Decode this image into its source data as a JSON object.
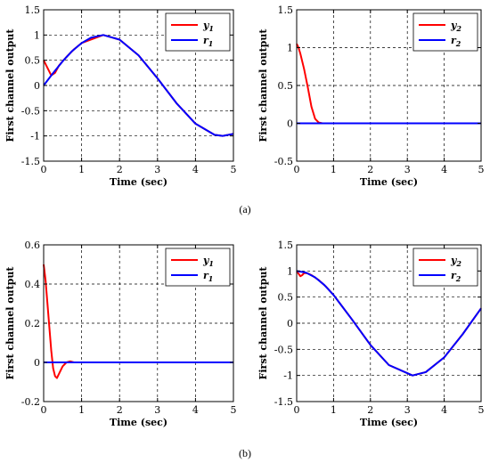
{
  "chart_data": [
    {
      "type": "line",
      "panel": "a",
      "position": "left",
      "xlabel": "Time (sec)",
      "ylabel": "First channel output",
      "xlim": [
        0,
        5
      ],
      "ylim": [
        -1.5,
        1.5
      ],
      "xticks": [
        "0",
        "1",
        "2",
        "3",
        "4",
        "5"
      ],
      "yticks": [
        "-1.5",
        "-1",
        "-0.5",
        "0",
        "0.5",
        "1",
        "1.5"
      ],
      "grid": true,
      "legend_position": "top-right",
      "series": [
        {
          "name": "y1",
          "label_base": "y",
          "label_sub": "1",
          "color": "#ff0000",
          "x": [
            0,
            0.1,
            0.2,
            0.3,
            0.4,
            0.5,
            0.6,
            0.8,
            1.0,
            1.5708,
            2.0,
            2.5,
            3.0,
            3.5,
            4.0,
            4.5,
            4.7124,
            5.0
          ],
          "y": [
            0.5,
            0.35,
            0.2,
            0.25,
            0.39,
            0.48,
            0.565,
            0.717,
            0.841,
            1.0,
            0.909,
            0.598,
            0.141,
            -0.351,
            -0.757,
            -0.978,
            -1.0,
            -0.959
          ]
        },
        {
          "name": "r1",
          "label_base": "r",
          "label_sub": "1",
          "color": "#0000ff",
          "x": [
            0,
            0.25,
            0.5,
            0.75,
            1.0,
            1.25,
            1.5708,
            2.0,
            2.5,
            3.0,
            3.5,
            4.0,
            4.5,
            4.7124,
            5.0
          ],
          "y": [
            0,
            0.247,
            0.479,
            0.682,
            0.841,
            0.949,
            1.0,
            0.909,
            0.598,
            0.141,
            -0.351,
            -0.757,
            -0.978,
            -1.0,
            -0.959
          ]
        }
      ]
    },
    {
      "type": "line",
      "panel": "a",
      "position": "right",
      "xlabel": "Time (sec)",
      "ylabel": "First channel output",
      "xlim": [
        0,
        5
      ],
      "ylim": [
        -0.5,
        1.5
      ],
      "xticks": [
        "0",
        "1",
        "2",
        "3",
        "4",
        "5"
      ],
      "yticks": [
        "-0.5",
        "0",
        "0.5",
        "1",
        "1.5"
      ],
      "grid": true,
      "legend_position": "top-right",
      "series": [
        {
          "name": "y2",
          "label_base": "y",
          "label_sub": "2",
          "color": "#ff0000",
          "x": [
            0,
            0.05,
            0.1,
            0.2,
            0.3,
            0.4,
            0.5,
            0.6,
            0.7,
            0.8
          ],
          "y": [
            1.05,
            1.0,
            0.92,
            0.72,
            0.48,
            0.22,
            0.06,
            0.01,
            0.0,
            0.0
          ]
        },
        {
          "name": "r2",
          "label_base": "r",
          "label_sub": "2",
          "color": "#0000ff",
          "x": [
            0,
            5
          ],
          "y": [
            0,
            0
          ]
        }
      ]
    },
    {
      "type": "line",
      "panel": "b",
      "position": "left",
      "xlabel": "Time (sec)",
      "ylabel": "First channel output",
      "xlim": [
        0,
        5
      ],
      "ylim": [
        -0.2,
        0.6
      ],
      "xticks": [
        "0",
        "1",
        "2",
        "3",
        "4",
        "5"
      ],
      "yticks": [
        "-0.2",
        "0",
        "0.2",
        "0.4",
        "0.6"
      ],
      "grid": true,
      "legend_position": "top-right",
      "series": [
        {
          "name": "y1",
          "label_base": "y",
          "label_sub": "1",
          "color": "#ff0000",
          "x": [
            0,
            0.05,
            0.1,
            0.15,
            0.2,
            0.25,
            0.3,
            0.35,
            0.4,
            0.5,
            0.6,
            0.7,
            0.8,
            1.0
          ],
          "y": [
            0.5,
            0.42,
            0.3,
            0.18,
            0.06,
            -0.03,
            -0.07,
            -0.08,
            -0.06,
            -0.02,
            0.0,
            0.005,
            0.0,
            0.0
          ]
        },
        {
          "name": "r1",
          "label_base": "r",
          "label_sub": "1",
          "color": "#0000ff",
          "x": [
            0,
            5
          ],
          "y": [
            0,
            0
          ]
        }
      ]
    },
    {
      "type": "line",
      "panel": "b",
      "position": "right",
      "xlabel": "Time (sec)",
      "ylabel": "First channel output",
      "xlim": [
        0,
        5
      ],
      "ylim": [
        -1.5,
        1.5
      ],
      "xticks": [
        "0",
        "1",
        "2",
        "3",
        "4",
        "5"
      ],
      "yticks": [
        "-1.5",
        "-1",
        "-0.5",
        "0",
        "0.5",
        "1",
        "1.5"
      ],
      "grid": true,
      "legend_position": "top-right",
      "series": [
        {
          "name": "y2",
          "label_base": "y",
          "label_sub": "2",
          "color": "#ff0000",
          "x": [
            0,
            0.05,
            0.1,
            0.15,
            0.2,
            0.3,
            0.4,
            0.6,
            0.8,
            1.0,
            1.5,
            2.0,
            2.5,
            3.1416,
            3.5,
            4.0,
            4.5,
            5.0
          ],
          "y": [
            1.0,
            0.95,
            0.9,
            0.92,
            0.96,
            0.955,
            0.921,
            0.825,
            0.697,
            0.54,
            0.071,
            -0.416,
            -0.801,
            -1.0,
            -0.936,
            -0.654,
            -0.211,
            0.284
          ]
        },
        {
          "name": "r2",
          "label_base": "r",
          "label_sub": "2",
          "color": "#0000ff",
          "x": [
            0,
            0.25,
            0.5,
            0.75,
            1.0,
            1.5,
            2.0,
            2.5,
            3.1416,
            3.5,
            4.0,
            4.5,
            5.0
          ],
          "y": [
            1.0,
            0.969,
            0.878,
            0.732,
            0.54,
            0.071,
            -0.416,
            -0.801,
            -1.0,
            -0.936,
            -0.654,
            -0.211,
            0.284
          ]
        }
      ]
    }
  ],
  "captions": {
    "a": "(a)",
    "b": "(b)"
  }
}
